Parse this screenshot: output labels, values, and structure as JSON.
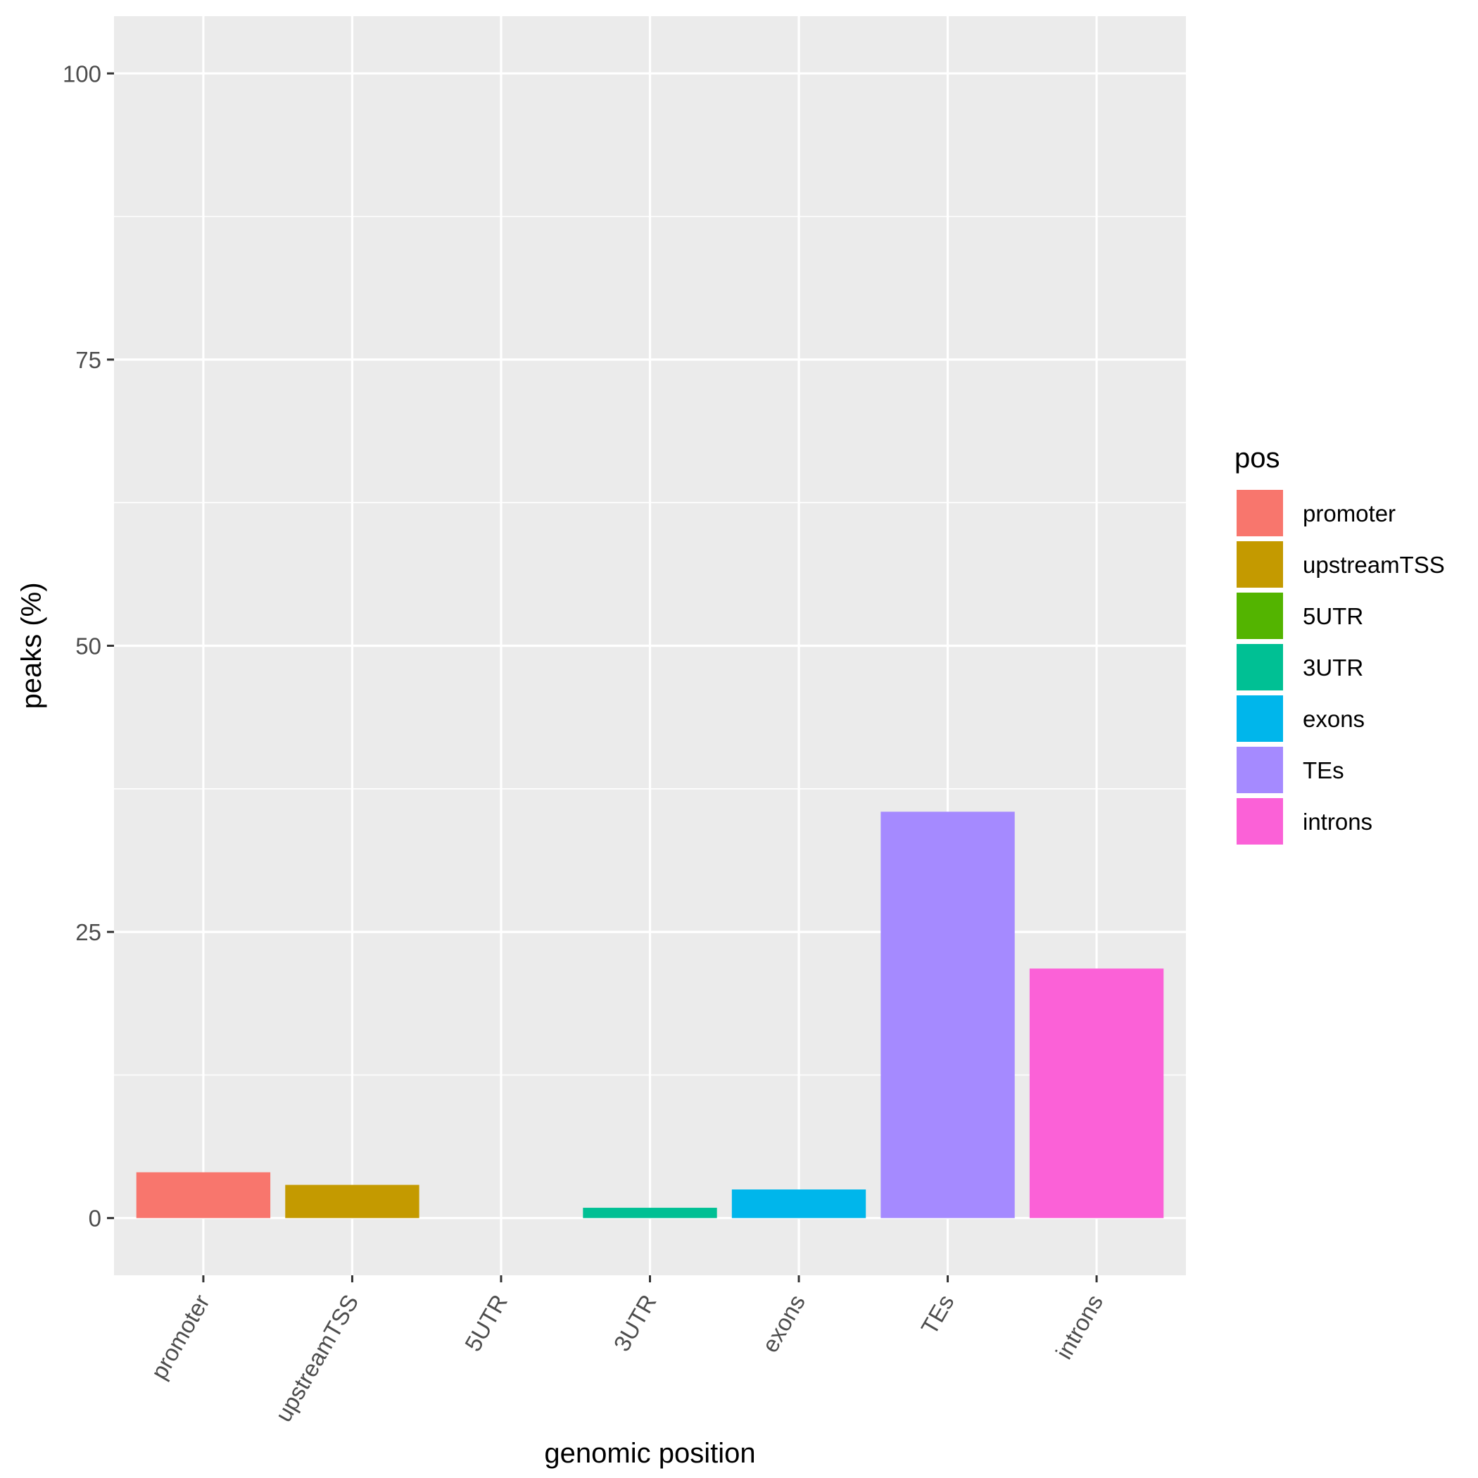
{
  "chart_data": {
    "type": "bar",
    "categories": [
      "promoter",
      "upstreamTSS",
      "5UTR",
      "3UTR",
      "exons",
      "TEs",
      "introns"
    ],
    "values": [
      4.0,
      2.9,
      0,
      0.9,
      2.5,
      35.5,
      21.8
    ],
    "colors": [
      "#F8766D",
      "#C49A00",
      "#53B400",
      "#00C094",
      "#00B6EB",
      "#A58AFF",
      "#FB61D7"
    ],
    "xlabel": "genomic position",
    "ylabel": "peaks (%)",
    "ylim": [
      -5,
      105
    ],
    "yticks": [
      0,
      25,
      50,
      75,
      100
    ],
    "yticks_minor": [
      12.5,
      37.5,
      62.5,
      87.5
    ],
    "grid": true,
    "legend": {
      "title": "pos",
      "position": "right",
      "items": [
        "promoter",
        "upstreamTSS",
        "5UTR",
        "3UTR",
        "exons",
        "TEs",
        "introns"
      ]
    },
    "panel_background": "#EBEBEB",
    "grid_color": "#FFFFFF",
    "text_color": "#4D4D4D"
  }
}
